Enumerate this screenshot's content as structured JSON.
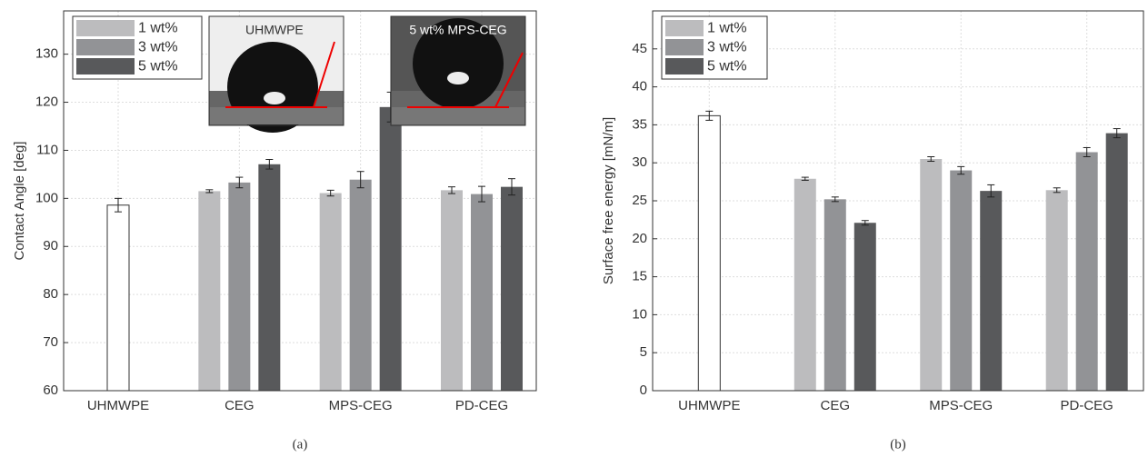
{
  "chart_data": [
    {
      "type": "bar",
      "caption": "(a)",
      "ylabel": "Contact Angle [deg]",
      "categories": [
        "UHMWPE",
        "CEG",
        "MPS-CEG",
        "PD-CEG"
      ],
      "reference": {
        "color": "#ffffff",
        "values": [
          98.6,
          null,
          null,
          null
        ],
        "errors": [
          1.4,
          null,
          null,
          null
        ]
      },
      "series": [
        {
          "name": "1 wt%",
          "color": "#bcbcbe",
          "values": [
            null,
            101.5,
            101.1,
            101.7
          ],
          "errors": [
            null,
            0.3,
            0.6,
            0.7
          ]
        },
        {
          "name": "3 wt%",
          "color": "#929396",
          "values": [
            null,
            103.3,
            103.9,
            100.9
          ],
          "errors": [
            null,
            1.1,
            1.7,
            1.6
          ]
        },
        {
          "name": "5 wt%",
          "color": "#58595b",
          "values": [
            null,
            107.1,
            119.0,
            102.4
          ],
          "errors": [
            null,
            1.0,
            3.1,
            1.7
          ]
        }
      ],
      "ylim": [
        60,
        139
      ],
      "yticks": [
        60,
        70,
        80,
        90,
        100,
        110,
        120,
        130
      ],
      "grid": true,
      "legend": "upper left",
      "insets": [
        "UHMWPE",
        "5 wt% MPS-CEG"
      ]
    },
    {
      "type": "bar",
      "caption": "(b)",
      "ylabel": "Surface free energy [mN/m]",
      "categories": [
        "UHMWPE",
        "CEG",
        "MPS-CEG",
        "PD-CEG"
      ],
      "reference": {
        "color": "#ffffff",
        "values": [
          36.2,
          null,
          null,
          null
        ],
        "errors": [
          0.6,
          null,
          null,
          null
        ]
      },
      "series": [
        {
          "name": "1 wt%",
          "color": "#bcbcbe",
          "values": [
            null,
            27.9,
            30.5,
            26.4
          ],
          "errors": [
            null,
            0.2,
            0.3,
            0.3
          ]
        },
        {
          "name": "3 wt%",
          "color": "#929396",
          "values": [
            null,
            25.2,
            29.0,
            31.4
          ],
          "errors": [
            null,
            0.3,
            0.5,
            0.6
          ]
        },
        {
          "name": "5 wt%",
          "color": "#58595b",
          "values": [
            null,
            22.1,
            26.3,
            33.9
          ],
          "errors": [
            null,
            0.3,
            0.8,
            0.6
          ]
        }
      ],
      "ylim": [
        0,
        50
      ],
      "yticks": [
        0,
        5,
        10,
        15,
        20,
        25,
        30,
        35,
        40,
        45
      ],
      "grid": true,
      "legend": "upper left"
    }
  ]
}
